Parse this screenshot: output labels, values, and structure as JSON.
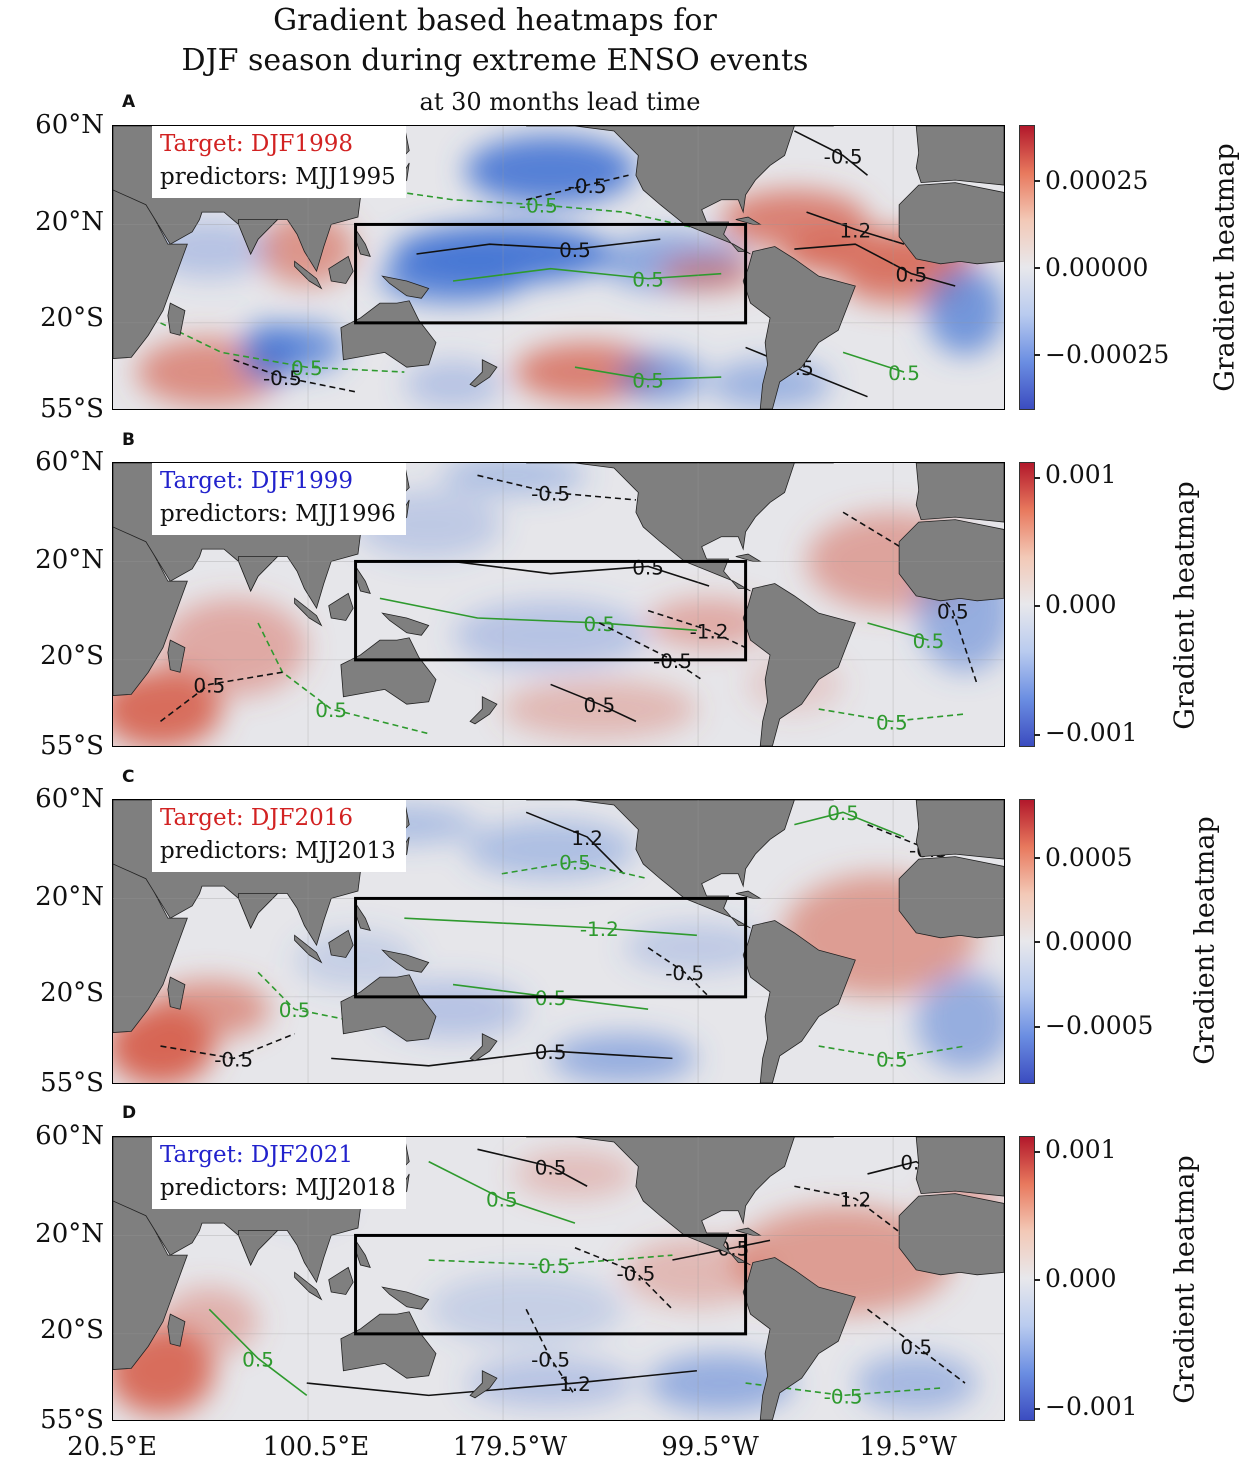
{
  "figure": {
    "title_line1": "Gradient based heatmaps for",
    "title_line2": "DJF season during extreme ENSO events",
    "subtitle": "at 30 months lead time"
  },
  "axes": {
    "y_labels": [
      "60°N",
      "20°N",
      "20°S",
      "55°S"
    ],
    "x_labels": [
      "20.5°E",
      "100.5°E",
      "179.5°W",
      "99.5°W",
      "19.5°W"
    ]
  },
  "colors": {
    "ocean_neutral": "#e6e6ea",
    "land": "#7f7f7f",
    "positive": "#d6604d",
    "negative": "#4575d4",
    "contour_black": "#111111",
    "contour_green": "#2e9a2e",
    "target_red": "#d22222",
    "target_blue": "#2222cc"
  },
  "chart_data": [
    {
      "type": "heatmap",
      "panel": "A",
      "target": "Target: DJF1998",
      "target_color": "red",
      "predictors": "predictors: MJJ1995",
      "colorbar_label": "Gradient heatmap",
      "colorbar_ticks": [
        "0.00025",
        "0.00000",
        "−0.00025"
      ],
      "colorbar_range": [
        -0.00038,
        0.00041
      ],
      "contour_labels": [
        "0.5",
        "-0.5",
        "1.2"
      ],
      "box_lon": [
        120,
        280
      ],
      "box_lat": [
        -20,
        20
      ]
    },
    {
      "type": "heatmap",
      "panel": "B",
      "target": "Target: DJF1999",
      "target_color": "blue",
      "predictors": "predictors: MJJ1996",
      "colorbar_label": "Gradient heatmap",
      "colorbar_ticks": [
        "0.001",
        "0.000",
        "−0.001"
      ],
      "colorbar_range": [
        -0.0011,
        0.0011
      ],
      "contour_labels": [
        "0.5",
        "-0.5",
        "-1.2"
      ],
      "box_lon": [
        120,
        280
      ],
      "box_lat": [
        -20,
        20
      ]
    },
    {
      "type": "heatmap",
      "panel": "C",
      "target": "Target: DJF2016",
      "target_color": "red",
      "predictors": "predictors: MJJ2013",
      "colorbar_label": "Gradient heatmap",
      "colorbar_ticks": [
        "0.0005",
        "0.0000",
        "−0.0005"
      ],
      "colorbar_range": [
        -0.00082,
        0.00082
      ],
      "contour_labels": [
        "0.5",
        "-0.5",
        "-1.2"
      ],
      "box_lon": [
        120,
        280
      ],
      "box_lat": [
        -20,
        20
      ]
    },
    {
      "type": "heatmap",
      "panel": "D",
      "target": "Target: DJF2021",
      "target_color": "blue",
      "predictors": "predictors: MJJ2018",
      "colorbar_label": "Gradient heatmap",
      "colorbar_ticks": [
        "0.001",
        "0.000",
        "−0.001"
      ],
      "colorbar_range": [
        -0.0011,
        0.0011
      ],
      "contour_labels": [
        "0.5",
        "-0.5",
        "1.2"
      ],
      "box_lon": [
        120,
        280
      ],
      "box_lat": [
        -20,
        20
      ]
    }
  ]
}
